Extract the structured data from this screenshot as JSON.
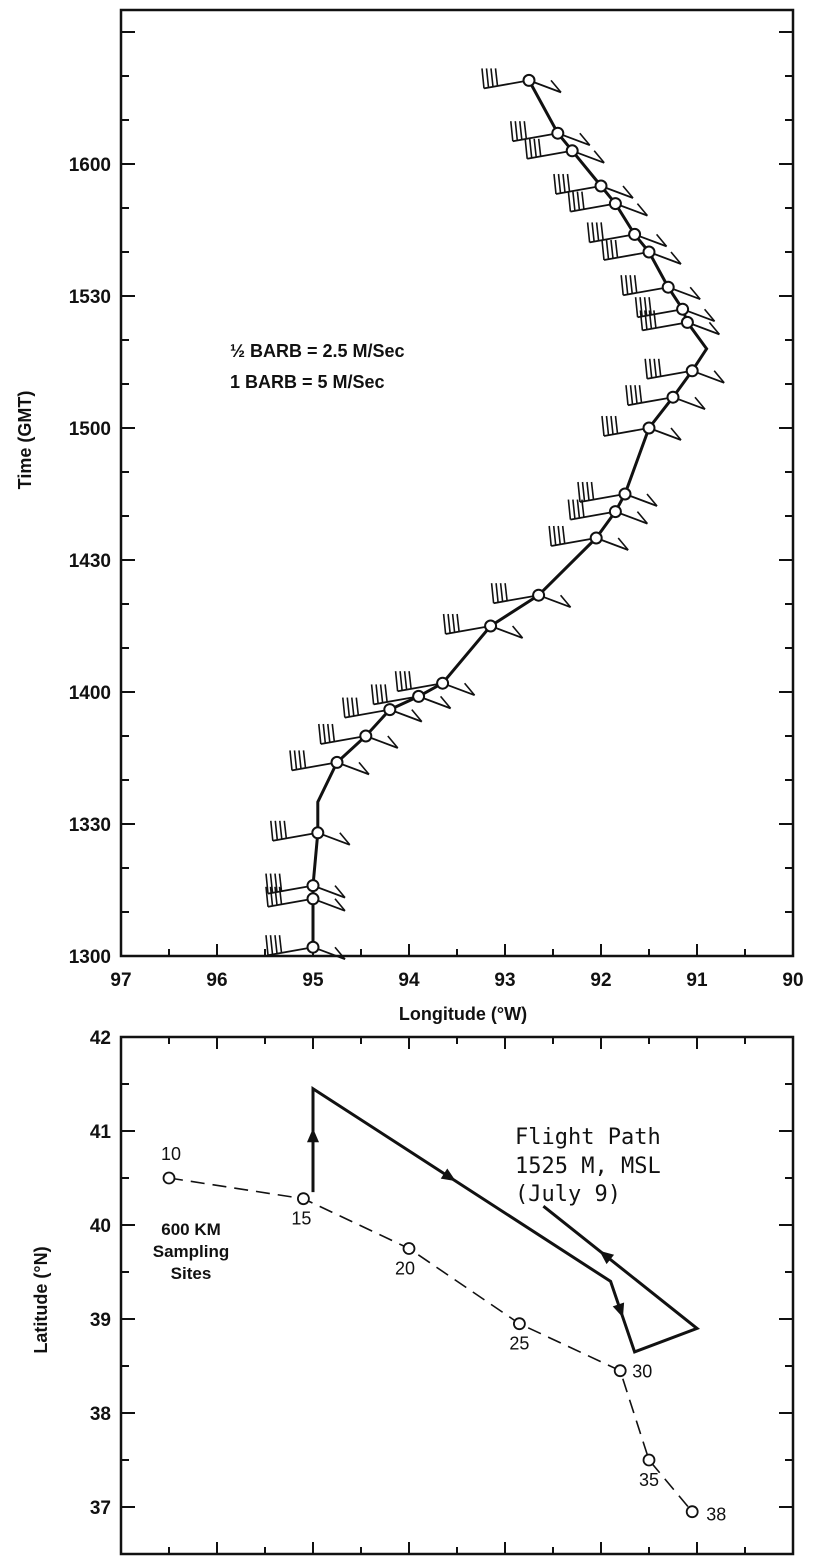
{
  "colors": {
    "ink": "#111111",
    "background": "#ffffff"
  },
  "chart_data": [
    {
      "type": "line",
      "title": "",
      "xlabel": "Longitude (°W)",
      "ylabel": "Time (GMT)",
      "xlim": [
        97,
        90
      ],
      "ylim": [
        1300,
        1635
      ],
      "x_ticks": [
        97,
        96,
        95,
        94,
        93,
        92,
        91,
        90
      ],
      "y_ticks": [
        1300,
        1330,
        1400,
        1430,
        1500,
        1530,
        1600
      ],
      "y_tick_labels": [
        "1300",
        "1330",
        "1400",
        "1430",
        "1500",
        "1530",
        "1600"
      ],
      "grid": false,
      "annotations": [
        "½ BARB = 2.5 M/Sec",
        "1 BARB = 5 M/Sec"
      ],
      "series": [
        {
          "points": [
            {
              "lon": 95.0,
              "time": 1302
            },
            {
              "lon": 95.0,
              "time": 1313
            },
            {
              "lon": 95.0,
              "time": 1316
            },
            {
              "lon": 94.95,
              "time": 1328
            },
            {
              "lon": 94.95,
              "time": 1335
            },
            {
              "lon": 94.75,
              "time": 1344
            },
            {
              "lon": 94.45,
              "time": 1350
            },
            {
              "lon": 94.2,
              "time": 1356
            },
            {
              "lon": 93.9,
              "time": 1359
            },
            {
              "lon": 93.65,
              "time": 1402
            },
            {
              "lon": 93.15,
              "time": 1415
            },
            {
              "lon": 92.65,
              "time": 1422
            },
            {
              "lon": 92.05,
              "time": 1435
            },
            {
              "lon": 91.85,
              "time": 1441
            },
            {
              "lon": 91.75,
              "time": 1445
            },
            {
              "lon": 91.5,
              "time": 1500
            },
            {
              "lon": 91.25,
              "time": 1507
            },
            {
              "lon": 91.05,
              "time": 1513
            },
            {
              "lon": 90.9,
              "time": 1518
            },
            {
              "lon": 91.1,
              "time": 1524
            },
            {
              "lon": 91.15,
              "time": 1527
            },
            {
              "lon": 91.3,
              "time": 1532
            },
            {
              "lon": 91.5,
              "time": 1540
            },
            {
              "lon": 91.65,
              "time": 1544
            },
            {
              "lon": 91.85,
              "time": 1551
            },
            {
              "lon": 92.0,
              "time": 1555
            },
            {
              "lon": 92.3,
              "time": 1603
            },
            {
              "lon": 92.45,
              "time": 1607
            },
            {
              "lon": 92.75,
              "time": 1619
            }
          ],
          "markers": [
            {
              "lon": 95.0,
              "time": 1302
            },
            {
              "lon": 95.0,
              "time": 1313
            },
            {
              "lon": 95.0,
              "time": 1316
            },
            {
              "lon": 94.95,
              "time": 1328
            },
            {
              "lon": 94.75,
              "time": 1344
            },
            {
              "lon": 94.45,
              "time": 1350
            },
            {
              "lon": 94.2,
              "time": 1356
            },
            {
              "lon": 93.9,
              "time": 1359
            },
            {
              "lon": 93.65,
              "time": 1402
            },
            {
              "lon": 93.15,
              "time": 1415
            },
            {
              "lon": 92.65,
              "time": 1422
            },
            {
              "lon": 92.05,
              "time": 1435
            },
            {
              "lon": 91.85,
              "time": 1441
            },
            {
              "lon": 91.75,
              "time": 1445
            },
            {
              "lon": 91.5,
              "time": 1500
            },
            {
              "lon": 91.25,
              "time": 1507
            },
            {
              "lon": 91.05,
              "time": 1513
            },
            {
              "lon": 91.1,
              "time": 1524
            },
            {
              "lon": 91.15,
              "time": 1527
            },
            {
              "lon": 91.3,
              "time": 1532
            },
            {
              "lon": 91.5,
              "time": 1540
            },
            {
              "lon": 91.65,
              "time": 1544
            },
            {
              "lon": 91.85,
              "time": 1551
            },
            {
              "lon": 92.0,
              "time": 1555
            },
            {
              "lon": 92.3,
              "time": 1603
            },
            {
              "lon": 92.45,
              "time": 1607
            },
            {
              "lon": 92.75,
              "time": 1619
            }
          ]
        }
      ]
    },
    {
      "type": "line",
      "title": "",
      "xlabel": "",
      "ylabel": "Latitude (°N)",
      "xlim": [
        97,
        90
      ],
      "ylim": [
        36.5,
        42
      ],
      "y_ticks": [
        37,
        38,
        39,
        40,
        41,
        42
      ],
      "grid": false,
      "annotations": [
        "Flight Path",
        "1525 M, MSL",
        "(July 9)",
        "600 KM",
        "Sampling",
        "Sites"
      ],
      "series": [
        {
          "points": [
            {
              "lon": 95.0,
              "lat": 40.35
            },
            {
              "lon": 95.0,
              "lat": 41.45
            },
            {
              "lon": 91.9,
              "lat": 39.4
            },
            {
              "lon": 91.75,
              "lat": 38.95
            },
            {
              "lon": 91.65,
              "lat": 38.65
            },
            {
              "lon": 91.0,
              "lat": 38.9
            },
            {
              "lon": 92.6,
              "lat": 40.2
            }
          ]
        },
        {
          "points": [
            {
              "lon": 96.5,
              "lat": 40.5,
              "label": "10"
            },
            {
              "lon": 95.1,
              "lat": 40.28,
              "label": "15"
            },
            {
              "lon": 94.0,
              "lat": 39.75,
              "label": "20"
            },
            {
              "lon": 92.85,
              "lat": 38.95,
              "label": "25"
            },
            {
              "lon": 91.8,
              "lat": 38.45,
              "label": "30"
            },
            {
              "lon": 91.5,
              "lat": 37.5,
              "label": "35"
            },
            {
              "lon": 91.05,
              "lat": 36.95,
              "label": "38"
            }
          ]
        }
      ]
    }
  ]
}
